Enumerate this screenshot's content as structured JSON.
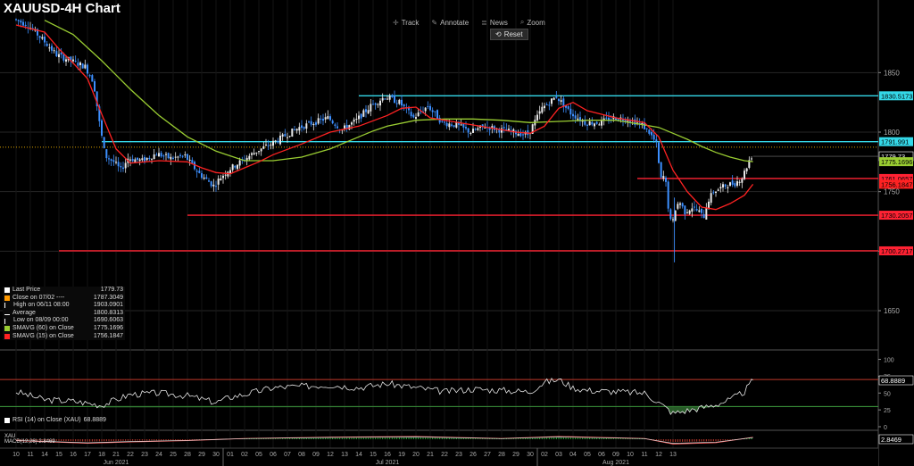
{
  "title": "XAUUSD-4H Chart",
  "toolbar": {
    "track": "Track",
    "annotate": "Annotate",
    "news": "News",
    "zoom": "Zoom",
    "reset": "Reset",
    "icons": [
      "crosshair-icon",
      "pencil-icon",
      "news-icon",
      "zoom-icon",
      "reset-icon"
    ]
  },
  "legend": {
    "rows": [
      {
        "label": "Last Price",
        "value": "1779.73",
        "color": "#ffffff"
      },
      {
        "label": "Close on 07/02 ----",
        "value": "1787.3049",
        "color": "#ff9900"
      },
      {
        "label": "High on 06/11 08:00",
        "value": "1903.0901",
        "color": "#ffffff"
      },
      {
        "label": "Average",
        "value": "1800.8313",
        "color": "#ffffff"
      },
      {
        "label": "Low on 08/09 00:00",
        "value": "1690.6063",
        "color": "#ffffff"
      },
      {
        "label": "SMAVG (60)  on Close",
        "value": "1775.1696",
        "color": "#9acd32"
      },
      {
        "label": "SMAVG (15)  on Close",
        "value": "1756.1847",
        "color": "#ff2222"
      }
    ]
  },
  "rsi_legend": {
    "label": "RSI (14)  on Close (XAU)",
    "value": "68.8889"
  },
  "macd_legend": {
    "line1": "XAU",
    "line2": "MACD(12,26)",
    "value": "2.8469"
  },
  "colors": {
    "up": "#e8e8e8",
    "down": "#3d8fff",
    "cyan": "#34d8e8",
    "red": "#ff2233",
    "sma15": "#ff2222",
    "sma60": "#9acd32",
    "grid": "#262626",
    "axis": "#aaaaaa",
    "avg_line": "#d8a000"
  },
  "chart_data": [
    {
      "type": "candlestick",
      "title": "XAUUSD-4H Chart",
      "ylim": [
        1620,
        1905
      ],
      "yticks": [
        1650,
        1700,
        1750,
        1800,
        1850
      ],
      "x_day_labels": [
        "10",
        "11",
        "14",
        "15",
        "16",
        "17",
        "18",
        "21",
        "22",
        "23",
        "24",
        "25",
        "28",
        "29",
        "30",
        "01",
        "02",
        "05",
        "06",
        "07",
        "08",
        "09",
        "12",
        "13",
        "14",
        "15",
        "16",
        "19",
        "20",
        "21",
        "22",
        "23",
        "26",
        "27",
        "28",
        "29",
        "30",
        "02",
        "03",
        "04",
        "05",
        "06",
        "09",
        "10",
        "11",
        "12",
        "13"
      ],
      "month_labels": [
        {
          "label": "Jun 2021",
          "day_index": 7
        },
        {
          "label": "Jul 2021",
          "day_index": 26
        },
        {
          "label": "Aug 2021",
          "day_index": 42
        }
      ],
      "month_starts": [
        15,
        37
      ],
      "price_path": [
        [
          0,
          1895
        ],
        [
          1,
          1890
        ],
        [
          2,
          1878
        ],
        [
          3,
          1865
        ],
        [
          4,
          1860
        ],
        [
          5,
          1855
        ],
        [
          5.6,
          1842
        ],
        [
          6,
          1808
        ],
        [
          6.4,
          1780
        ],
        [
          7,
          1775
        ],
        [
          7.5,
          1768
        ],
        [
          8,
          1778
        ],
        [
          9,
          1776
        ],
        [
          10,
          1782
        ],
        [
          11,
          1778
        ],
        [
          12,
          1780
        ],
        [
          12.5,
          1772
        ],
        [
          13,
          1765
        ],
        [
          14,
          1755
        ],
        [
          14.5,
          1762
        ],
        [
          15,
          1768
        ],
        [
          16,
          1776
        ],
        [
          17,
          1784
        ],
        [
          18,
          1790
        ],
        [
          19,
          1797
        ],
        [
          20,
          1804
        ],
        [
          21,
          1808
        ],
        [
          22,
          1812
        ],
        [
          23,
          1802
        ],
        [
          24,
          1810
        ],
        [
          25,
          1822
        ],
        [
          26,
          1830
        ],
        [
          27,
          1825
        ],
        [
          28,
          1812
        ],
        [
          29,
          1822
        ],
        [
          30,
          1808
        ],
        [
          31,
          1806
        ],
        [
          32,
          1800
        ],
        [
          33,
          1805
        ],
        [
          34,
          1802
        ],
        [
          35,
          1800
        ],
        [
          36,
          1798
        ],
        [
          37,
          1820
        ],
        [
          38,
          1830
        ],
        [
          39,
          1816
        ],
        [
          40,
          1808
        ],
        [
          41,
          1808
        ],
        [
          42,
          1812
        ],
        [
          43,
          1811
        ],
        [
          44,
          1806
        ],
        [
          44.5,
          1800
        ],
        [
          45,
          1790
        ],
        [
          45.3,
          1760
        ],
        [
          45.6,
          1764
        ],
        [
          45.9,
          1730
        ],
        [
          46.1,
          1720
        ],
        [
          46.3,
          1735
        ],
        [
          46.6,
          1742
        ],
        [
          47,
          1733
        ],
        [
          47.5,
          1737
        ],
        [
          48,
          1733
        ],
        [
          48.3,
          1728
        ],
        [
          48.6,
          1742
        ],
        [
          49,
          1750
        ],
        [
          50,
          1756
        ],
        [
          50.5,
          1757
        ],
        [
          51,
          1762
        ],
        [
          51.3,
          1770
        ],
        [
          51.6,
          1779.73
        ]
      ],
      "sma15": [
        [
          0,
          1890
        ],
        [
          2,
          1884
        ],
        [
          3,
          1870
        ],
        [
          4,
          1858
        ],
        [
          5,
          1845
        ],
        [
          6,
          1815
        ],
        [
          7,
          1786
        ],
        [
          8,
          1774
        ],
        [
          10,
          1776
        ],
        [
          12,
          1775
        ],
        [
          13,
          1770
        ],
        [
          14,
          1766
        ],
        [
          15,
          1765
        ],
        [
          16,
          1770
        ],
        [
          17,
          1775
        ],
        [
          18,
          1781
        ],
        [
          20,
          1790
        ],
        [
          22,
          1800
        ],
        [
          24,
          1805
        ],
        [
          26,
          1814
        ],
        [
          27,
          1820
        ],
        [
          28,
          1821
        ],
        [
          29,
          1812
        ],
        [
          30,
          1810
        ],
        [
          32,
          1806
        ],
        [
          35,
          1800
        ],
        [
          36,
          1799
        ],
        [
          37,
          1805
        ],
        [
          38,
          1820
        ],
        [
          39,
          1825
        ],
        [
          40,
          1818
        ],
        [
          42,
          1812
        ],
        [
          43,
          1810
        ],
        [
          44,
          1808
        ],
        [
          45,
          1796
        ],
        [
          46,
          1768
        ],
        [
          47,
          1750
        ],
        [
          48,
          1737
        ],
        [
          49,
          1735
        ],
        [
          50,
          1740
        ],
        [
          51,
          1747
        ],
        [
          51.6,
          1756.18
        ]
      ],
      "sma60": [
        [
          2,
          1894
        ],
        [
          4,
          1882
        ],
        [
          6,
          1860
        ],
        [
          8,
          1836
        ],
        [
          10,
          1814
        ],
        [
          12,
          1796
        ],
        [
          14,
          1784
        ],
        [
          16,
          1776
        ],
        [
          18,
          1776
        ],
        [
          20,
          1779
        ],
        [
          22,
          1786
        ],
        [
          24,
          1796
        ],
        [
          25,
          1801
        ],
        [
          26,
          1805
        ],
        [
          28,
          1810
        ],
        [
          30,
          1811
        ],
        [
          32,
          1811
        ],
        [
          34,
          1810
        ],
        [
          36,
          1808
        ],
        [
          38,
          1809
        ],
        [
          40,
          1810
        ],
        [
          42,
          1810
        ],
        [
          44,
          1806
        ],
        [
          45,
          1804
        ],
        [
          46,
          1799
        ],
        [
          47,
          1794
        ],
        [
          48,
          1788
        ],
        [
          49,
          1783
        ],
        [
          50,
          1779
        ],
        [
          51,
          1776
        ],
        [
          51.6,
          1775.17
        ]
      ],
      "horizontal_lines": [
        {
          "value": 1830.5173,
          "label": "1830.5173",
          "color": "cyan",
          "x_start": 24
        },
        {
          "value": 1791.991,
          "label": "1791.991",
          "color": "cyan",
          "x_start": 6
        },
        {
          "value": 1761.0657,
          "label": "1761.0657",
          "color": "red",
          "x_start": 43.5
        },
        {
          "value": 1730.2057,
          "label": "1730.2057",
          "color": "red",
          "x_start": 12
        },
        {
          "value": 1700.2717,
          "label": "1700.2717",
          "color": "red",
          "x_start": 3
        }
      ],
      "average": 1787.3049,
      "last_price_tag": {
        "value": 1779.73,
        "label": "1779.73"
      },
      "sma60_tag": {
        "value": 1775.1696,
        "label": "1775.1696"
      },
      "sma15_tag": {
        "value": 1756.1847,
        "label": "1756.1847"
      },
      "annotations": [
        {
          "type": "low",
          "x": 46.1,
          "value": 1690.6063
        }
      ]
    },
    {
      "type": "line",
      "title": "RSI (14)",
      "ylim": [
        0,
        110
      ],
      "yticks": [
        0,
        25,
        50,
        75,
        100
      ],
      "levels": [
        30,
        70
      ],
      "last_value": 68.8889,
      "values": [
        [
          0,
          52
        ],
        [
          2,
          40
        ],
        [
          4,
          38
        ],
        [
          6,
          32
        ],
        [
          7,
          40
        ],
        [
          8,
          48
        ],
        [
          10,
          50
        ],
        [
          12,
          46
        ],
        [
          14,
          36
        ],
        [
          15,
          44
        ],
        [
          16,
          48
        ],
        [
          18,
          58
        ],
        [
          20,
          60
        ],
        [
          22,
          62
        ],
        [
          24,
          58
        ],
        [
          26,
          64
        ],
        [
          28,
          58
        ],
        [
          30,
          52
        ],
        [
          32,
          56
        ],
        [
          34,
          54
        ],
        [
          36,
          52
        ],
        [
          37,
          66
        ],
        [
          38,
          70
        ],
        [
          39,
          58
        ],
        [
          40,
          54
        ],
        [
          42,
          52
        ],
        [
          44,
          50
        ],
        [
          45,
          36
        ],
        [
          45.5,
          28
        ],
        [
          46,
          20
        ],
        [
          47,
          24
        ],
        [
          48,
          28
        ],
        [
          49,
          33
        ],
        [
          50,
          40
        ],
        [
          51,
          52
        ],
        [
          51.6,
          68.89
        ]
      ]
    },
    {
      "type": "line",
      "title": "MACD(12,26)",
      "last_value": 2.8469,
      "values": [
        [
          0,
          -2
        ],
        [
          5,
          -6
        ],
        [
          8,
          -4
        ],
        [
          12,
          -2
        ],
        [
          16,
          1
        ],
        [
          22,
          3
        ],
        [
          28,
          4
        ],
        [
          34,
          1
        ],
        [
          38,
          4
        ],
        [
          44,
          1
        ],
        [
          46,
          -7
        ],
        [
          49,
          -5
        ],
        [
          51.6,
          2.85
        ]
      ]
    }
  ]
}
